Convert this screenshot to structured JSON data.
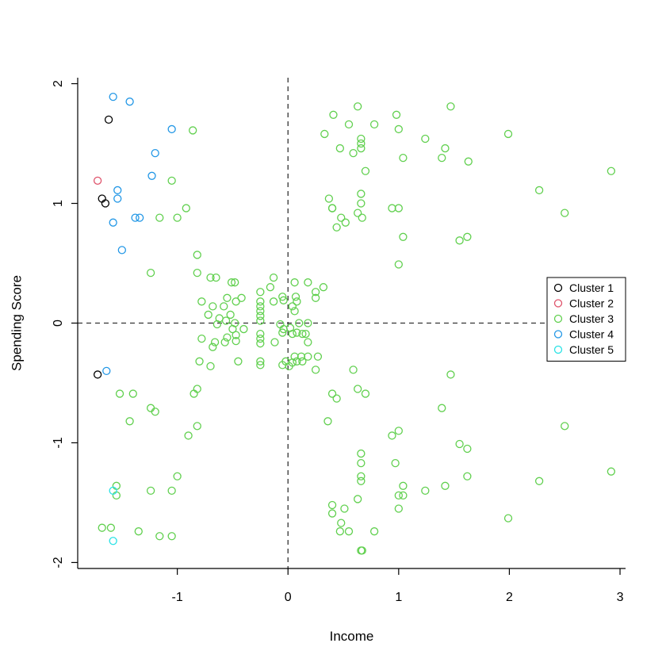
{
  "chart_data": {
    "type": "scatter",
    "title": "",
    "xlabel": "Income",
    "ylabel": "Spending Score",
    "xlim": [
      -1.9,
      3.05
    ],
    "ylim": [
      -2.05,
      2.05
    ],
    "xticks": [
      -1,
      0,
      1,
      2,
      3
    ],
    "yticks": [
      -2,
      -1,
      0,
      1,
      2
    ],
    "grid": false,
    "reference_lines": {
      "x": 0,
      "y": 0,
      "style": "dashed"
    },
    "legend_position": "right",
    "series": [
      {
        "name": "Cluster 1",
        "color": "#000000",
        "points": [
          [
            -1.62,
            1.7
          ],
          [
            -1.68,
            1.04
          ],
          [
            -1.65,
            1.0
          ],
          [
            -1.72,
            -0.43
          ]
        ]
      },
      {
        "name": "Cluster 2",
        "color": "#DF536B",
        "points": [
          [
            -1.72,
            1.19
          ]
        ]
      },
      {
        "name": "Cluster 3",
        "color": "#61D04F",
        "points": [
          [
            -0.86,
            1.61
          ],
          [
            -1.05,
            1.19
          ],
          [
            -0.92,
            0.96
          ],
          [
            -1.16,
            0.88
          ],
          [
            -1.0,
            0.88
          ],
          [
            -0.82,
            0.57
          ],
          [
            -0.7,
            0.38
          ],
          [
            -0.65,
            0.38
          ],
          [
            -1.24,
            0.42
          ],
          [
            -0.82,
            0.42
          ],
          [
            -0.51,
            0.34
          ],
          [
            -0.48,
            0.34
          ],
          [
            -0.78,
            0.18
          ],
          [
            -0.68,
            0.14
          ],
          [
            -0.55,
            0.21
          ],
          [
            -0.42,
            0.21
          ],
          [
            -0.47,
            0.18
          ],
          [
            -0.58,
            0.14
          ],
          [
            -0.72,
            0.07
          ],
          [
            -0.52,
            0.07
          ],
          [
            -0.62,
            0.04
          ],
          [
            -0.56,
            0.02
          ],
          [
            -0.48,
            0.0
          ],
          [
            -0.64,
            -0.01
          ],
          [
            -0.5,
            -0.05
          ],
          [
            -0.4,
            -0.05
          ],
          [
            -0.47,
            -0.1
          ],
          [
            -0.55,
            -0.12
          ],
          [
            -0.78,
            -0.13
          ],
          [
            -0.66,
            -0.16
          ],
          [
            -0.57,
            -0.16
          ],
          [
            -0.47,
            -0.15
          ],
          [
            -0.68,
            -0.2
          ],
          [
            -0.8,
            -0.32
          ],
          [
            -0.7,
            -0.36
          ],
          [
            -0.45,
            -0.32
          ],
          [
            -0.25,
            0.26
          ],
          [
            -0.25,
            0.18
          ],
          [
            -0.25,
            0.14
          ],
          [
            -0.25,
            0.1
          ],
          [
            -0.25,
            0.06
          ],
          [
            -0.25,
            0.02
          ],
          [
            -0.25,
            -0.09
          ],
          [
            -0.25,
            -0.13
          ],
          [
            -0.25,
            -0.17
          ],
          [
            -0.25,
            -0.32
          ],
          [
            -0.25,
            -0.35
          ],
          [
            -0.13,
            0.38
          ],
          [
            -0.16,
            0.3
          ],
          [
            -0.13,
            0.18
          ],
          [
            -0.05,
            0.22
          ],
          [
            -0.04,
            0.19
          ],
          [
            -0.07,
            -0.01
          ],
          [
            -0.12,
            -0.16
          ],
          [
            -0.04,
            -0.05
          ],
          [
            -0.05,
            -0.08
          ],
          [
            -0.05,
            -0.35
          ],
          [
            0.06,
            0.34
          ],
          [
            0.18,
            0.34
          ],
          [
            0.07,
            0.22
          ],
          [
            0.08,
            0.18
          ],
          [
            0.04,
            0.14
          ],
          [
            0.06,
            0.1
          ],
          [
            0.32,
            0.3
          ],
          [
            0.25,
            0.26
          ],
          [
            0.25,
            0.21
          ],
          [
            0.1,
            0.0
          ],
          [
            0.18,
            0.0
          ],
          [
            0.02,
            -0.04
          ],
          [
            0.08,
            -0.08
          ],
          [
            0.04,
            -0.09
          ],
          [
            0.13,
            -0.09
          ],
          [
            0.16,
            -0.09
          ],
          [
            0.18,
            -0.16
          ],
          [
            0.06,
            -0.28
          ],
          [
            0.12,
            -0.28
          ],
          [
            0.18,
            -0.28
          ],
          [
            0.27,
            -0.28
          ],
          [
            -0.02,
            -0.32
          ],
          [
            0.04,
            -0.33
          ],
          [
            0.08,
            -0.32
          ],
          [
            0.13,
            -0.32
          ],
          [
            0.01,
            -0.36
          ],
          [
            0.25,
            -0.39
          ],
          [
            0.33,
            1.58
          ],
          [
            0.41,
            1.74
          ],
          [
            0.55,
            1.66
          ],
          [
            0.63,
            1.81
          ],
          [
            0.47,
            1.46
          ],
          [
            0.59,
            1.42
          ],
          [
            0.66,
            1.54
          ],
          [
            0.66,
            1.5
          ],
          [
            0.66,
            1.46
          ],
          [
            0.7,
            1.27
          ],
          [
            0.78,
            1.66
          ],
          [
            0.98,
            1.74
          ],
          [
            1.0,
            1.62
          ],
          [
            1.04,
            1.38
          ],
          [
            1.24,
            1.54
          ],
          [
            1.47,
            1.81
          ],
          [
            1.42,
            1.46
          ],
          [
            1.39,
            1.38
          ],
          [
            1.63,
            1.35
          ],
          [
            1.99,
            1.58
          ],
          [
            2.27,
            1.11
          ],
          [
            2.92,
            1.27
          ],
          [
            2.5,
            0.92
          ],
          [
            0.37,
            1.04
          ],
          [
            0.4,
            0.96
          ],
          [
            0.4,
            0.96
          ],
          [
            0.48,
            0.88
          ],
          [
            0.52,
            0.84
          ],
          [
            0.44,
            0.8
          ],
          [
            0.66,
            1.08
          ],
          [
            0.66,
            1.0
          ],
          [
            0.63,
            0.92
          ],
          [
            0.67,
            0.88
          ],
          [
            0.94,
            0.96
          ],
          [
            1.0,
            0.96
          ],
          [
            1.04,
            0.72
          ],
          [
            1.55,
            0.69
          ],
          [
            1.62,
            0.72
          ],
          [
            1.0,
            0.49
          ],
          [
            0.59,
            -0.39
          ],
          [
            0.4,
            -0.59
          ],
          [
            0.44,
            -0.63
          ],
          [
            0.63,
            -0.55
          ],
          [
            0.7,
            -0.59
          ],
          [
            0.36,
            -0.82
          ],
          [
            1.39,
            -0.71
          ],
          [
            1.47,
            -0.43
          ],
          [
            0.94,
            -0.94
          ],
          [
            1.0,
            -0.9
          ],
          [
            0.66,
            -1.09
          ],
          [
            0.66,
            -1.17
          ],
          [
            0.66,
            -1.28
          ],
          [
            0.66,
            -1.32
          ],
          [
            0.97,
            -1.17
          ],
          [
            1.04,
            -1.36
          ],
          [
            1.0,
            -1.44
          ],
          [
            1.04,
            -1.44
          ],
          [
            1.24,
            -1.4
          ],
          [
            1.42,
            -1.36
          ],
          [
            1.55,
            -1.01
          ],
          [
            1.62,
            -1.05
          ],
          [
            1.62,
            -1.28
          ],
          [
            2.27,
            -1.32
          ],
          [
            2.5,
            -0.86
          ],
          [
            2.92,
            -1.24
          ],
          [
            1.99,
            -1.63
          ],
          [
            1.0,
            -1.55
          ],
          [
            0.4,
            -1.52
          ],
          [
            0.51,
            -1.55
          ],
          [
            0.4,
            -1.59
          ],
          [
            0.63,
            -1.47
          ],
          [
            0.48,
            -1.67
          ],
          [
            0.47,
            -1.74
          ],
          [
            0.55,
            -1.74
          ],
          [
            0.78,
            -1.74
          ],
          [
            0.66,
            -1.9
          ],
          [
            0.67,
            -1.9
          ],
          [
            -1.52,
            -0.59
          ],
          [
            -1.4,
            -0.59
          ],
          [
            -1.43,
            -0.82
          ],
          [
            -1.24,
            -0.71
          ],
          [
            -1.2,
            -0.74
          ],
          [
            -0.85,
            -0.59
          ],
          [
            -0.82,
            -0.55
          ],
          [
            -0.82,
            -0.86
          ],
          [
            -0.9,
            -0.94
          ],
          [
            -1.55,
            -1.36
          ],
          [
            -1.55,
            -1.44
          ],
          [
            -1.24,
            -1.4
          ],
          [
            -1.05,
            -1.4
          ],
          [
            -1.0,
            -1.28
          ],
          [
            -1.68,
            -1.71
          ],
          [
            -1.6,
            -1.71
          ],
          [
            -1.35,
            -1.74
          ],
          [
            -1.16,
            -1.78
          ],
          [
            -1.05,
            -1.78
          ]
        ]
      },
      {
        "name": "Cluster 4",
        "color": "#2297E6",
        "points": [
          [
            -1.58,
            1.89
          ],
          [
            -1.43,
            1.85
          ],
          [
            -1.05,
            1.62
          ],
          [
            -1.2,
            1.42
          ],
          [
            -1.23,
            1.23
          ],
          [
            -1.54,
            1.11
          ],
          [
            -1.54,
            1.04
          ],
          [
            -1.38,
            0.88
          ],
          [
            -1.34,
            0.88
          ],
          [
            -1.58,
            0.84
          ],
          [
            -1.5,
            0.61
          ],
          [
            -1.64,
            -0.4
          ]
        ]
      },
      {
        "name": "Cluster 5",
        "color": "#28E2E5",
        "points": [
          [
            -1.58,
            -1.4
          ],
          [
            -1.58,
            -1.82
          ]
        ]
      }
    ]
  }
}
